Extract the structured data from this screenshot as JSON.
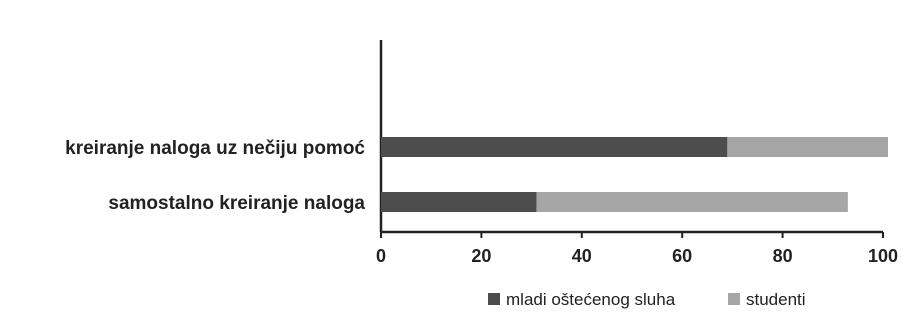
{
  "chart_data": {
    "type": "bar",
    "orientation": "horizontal",
    "stacked": true,
    "categories": [
      "kreiranje naloga uz nečiju pomoć",
      "samostalno kreiranje naloga"
    ],
    "series": [
      {
        "name": "mladi oštećenog sluha",
        "values": [
          69,
          31
        ],
        "color": "#4d4d4d"
      },
      {
        "name": "studenti",
        "values": [
          32,
          62
        ],
        "color": "#a6a6a6"
      }
    ],
    "xlim": [
      0,
      100
    ],
    "xticks": [
      0,
      20,
      40,
      60,
      80,
      100
    ],
    "grid": false,
    "legend": "bottom"
  }
}
